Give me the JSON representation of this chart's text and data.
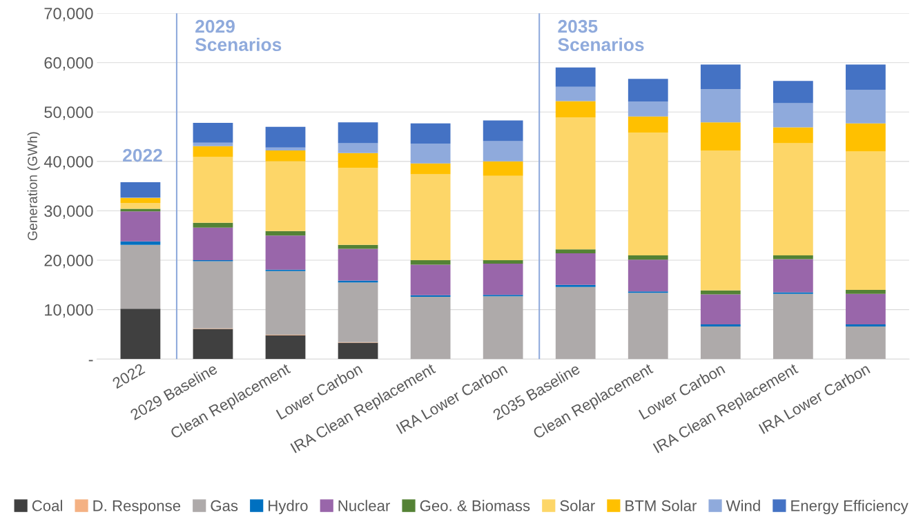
{
  "chart_data": {
    "type": "bar",
    "stacked": true,
    "ylabel": "Generation (GWh)",
    "categories": [
      "2022",
      "2029 Baseline",
      "Clean Replacement",
      "Lower Carbon",
      "IRA Clean Replacement",
      "IRA Lower Carbon",
      "2035 Baseline",
      "Clean Replacement",
      "Lower Carbon",
      "IRA Clean Replacement",
      "IRA Lower Carbon"
    ],
    "series": [
      {
        "name": "Coal",
        "color": "#404040",
        "values": [
          10200,
          6100,
          4800,
          3300,
          0,
          0,
          0,
          0,
          0,
          0,
          0
        ]
      },
      {
        "name": "D. Response",
        "color": "#f4b183",
        "values": [
          0,
          100,
          100,
          100,
          0,
          0,
          0,
          0,
          0,
          0,
          0
        ]
      },
      {
        "name": "Gas",
        "color": "#aeaaaa",
        "values": [
          12900,
          13600,
          12900,
          12100,
          12600,
          12700,
          14600,
          13400,
          6600,
          13200,
          6600
        ]
      },
      {
        "name": "Hydro",
        "color": "#0070c0",
        "values": [
          700,
          200,
          300,
          400,
          300,
          300,
          400,
          300,
          400,
          300,
          400
        ]
      },
      {
        "name": "Nuclear",
        "color": "#9966aa",
        "values": [
          6100,
          6600,
          6900,
          6400,
          6200,
          6300,
          6400,
          6400,
          6100,
          6700,
          6200
        ]
      },
      {
        "name": "Geo. & Biomass",
        "color": "#548235",
        "values": [
          500,
          1000,
          900,
          800,
          900,
          700,
          800,
          900,
          800,
          800,
          800
        ]
      },
      {
        "name": "Solar",
        "color": "#fdd668",
        "values": [
          1200,
          13300,
          14100,
          15600,
          17400,
          17100,
          26700,
          24800,
          28300,
          22700,
          28000
        ]
      },
      {
        "name": "BTM Solar",
        "color": "#ffc000",
        "values": [
          1000,
          2200,
          2200,
          3000,
          2200,
          2900,
          3300,
          3300,
          5700,
          3200,
          5700
        ]
      },
      {
        "name": "Wind",
        "color": "#8faadc",
        "values": [
          100,
          700,
          600,
          2000,
          4000,
          4100,
          2900,
          3000,
          6700,
          4900,
          6800
        ]
      },
      {
        "name": "Energy Efficiency",
        "color": "#4472c4",
        "values": [
          3100,
          4000,
          4200,
          4200,
          4100,
          4200,
          3900,
          4600,
          5000,
          4500,
          5100
        ]
      }
    ],
    "ylim": [
      0,
      70000
    ],
    "yticks": [
      {
        "value": 0,
        "label": "-"
      },
      {
        "value": 10000,
        "label": "10,000"
      },
      {
        "value": 20000,
        "label": "20,000"
      },
      {
        "value": 30000,
        "label": "30,000"
      },
      {
        "value": 40000,
        "label": "40,000"
      },
      {
        "value": 50000,
        "label": "50,000"
      },
      {
        "value": 60000,
        "label": "60,000"
      },
      {
        "value": 70000,
        "label": "70,000"
      }
    ],
    "annotations": [
      "2022",
      "2029\nScenarios",
      "2035\nScenarios"
    ],
    "grid": "y",
    "legend": "bottom"
  }
}
